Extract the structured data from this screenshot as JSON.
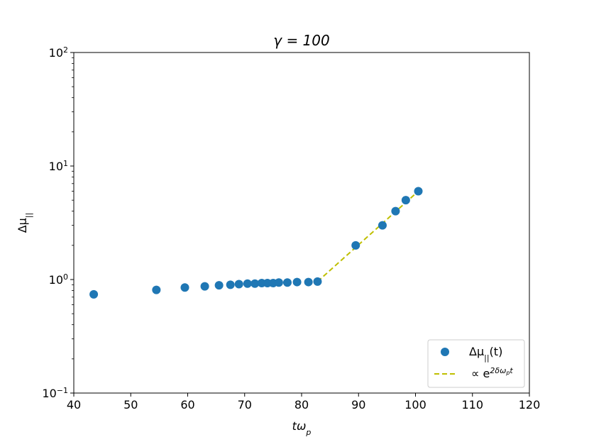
{
  "chart_data": {
    "type": "scatter",
    "title_text": "γ = 100",
    "xlabel_text": "tω",
    "xlabel_sub": "p",
    "ylabel_text": "Δμ",
    "ylabel_sub": "||",
    "xlim": [
      40,
      120
    ],
    "ylim": [
      0.1,
      100
    ],
    "yscale": "log",
    "grid": false,
    "legend_position": "bottom-right",
    "x_ticks": [
      "40",
      "50",
      "60",
      "70",
      "80",
      "90",
      "100",
      "110",
      "120"
    ],
    "y_ticks": [
      {
        "value": 0.1,
        "base": "10",
        "exp": "−1"
      },
      {
        "value": 1,
        "base": "10",
        "exp": "0"
      },
      {
        "value": 10,
        "base": "10",
        "exp": "1"
      },
      {
        "value": 100,
        "base": "10",
        "exp": "2"
      }
    ],
    "series": [
      {
        "name": "Δμ||(t)",
        "legend_text": "Δμ",
        "legend_sub": "||",
        "legend_suffix": "(t)",
        "kind": "scatter",
        "color": "#1f77b4",
        "x": [
          43.5,
          54.5,
          59.5,
          63.0,
          65.5,
          67.5,
          69.0,
          70.5,
          71.8,
          73.0,
          74.0,
          75.0,
          76.0,
          77.5,
          79.2,
          81.2,
          82.8,
          89.5,
          94.2,
          96.5,
          98.3,
          100.5
        ],
        "y": [
          0.74,
          0.81,
          0.85,
          0.87,
          0.89,
          0.9,
          0.91,
          0.92,
          0.92,
          0.93,
          0.93,
          0.93,
          0.94,
          0.94,
          0.95,
          0.95,
          0.96,
          2.0,
          3.0,
          4.0,
          5.0,
          6.0
        ]
      },
      {
        "name": "∝ e^(2δωp t)",
        "legend_text": "∝ e",
        "legend_sup": "2δω",
        "legend_sup_sub": "p",
        "legend_sup_suffix": "t",
        "kind": "dashed-line",
        "color": "#bfbf00",
        "x": [
          82.8,
          100.5
        ],
        "y": [
          0.96,
          6.0
        ]
      }
    ]
  }
}
